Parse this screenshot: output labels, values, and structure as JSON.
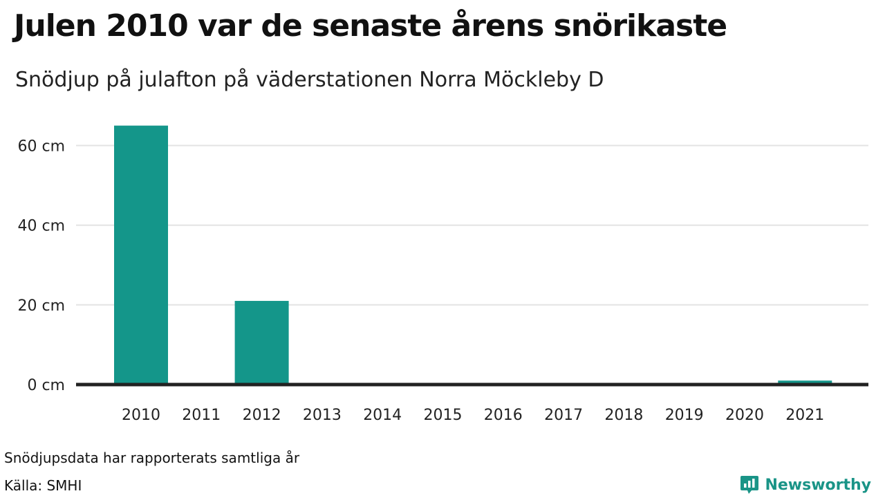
{
  "header": {
    "title": "Julen 2010 var de senaste årens snörikaste",
    "subtitle": "Snödjup på julafton på väderstationen Norra Möckleby D"
  },
  "footer": {
    "note": "Snödjupsdata har rapporterats samtliga år",
    "source": "Källa: SMHI",
    "brand": "Newsworthy",
    "brand_icon": "newsworthy-logo-icon"
  },
  "colors": {
    "bar": "#14968a",
    "gridline": "#e3e3e3",
    "baseline": "#222222",
    "brand": "#1a9487"
  },
  "chart_data": {
    "type": "bar",
    "title": "Julen 2010 var de senaste årens snörikaste",
    "subtitle": "Snödjup på julafton på väderstationen Norra Möckleby D",
    "categories": [
      "2010",
      "2011",
      "2012",
      "2013",
      "2014",
      "2015",
      "2016",
      "2017",
      "2018",
      "2019",
      "2020",
      "2021"
    ],
    "values": [
      65,
      0,
      21,
      0,
      0,
      0,
      0,
      0,
      0,
      0,
      0,
      1
    ],
    "ylim": [
      0,
      70
    ],
    "yticks": [
      0,
      20,
      40,
      60
    ],
    "ytick_labels": [
      "0 cm",
      "20 cm",
      "40 cm",
      "60 cm"
    ],
    "grid": true,
    "legend": "none"
  }
}
